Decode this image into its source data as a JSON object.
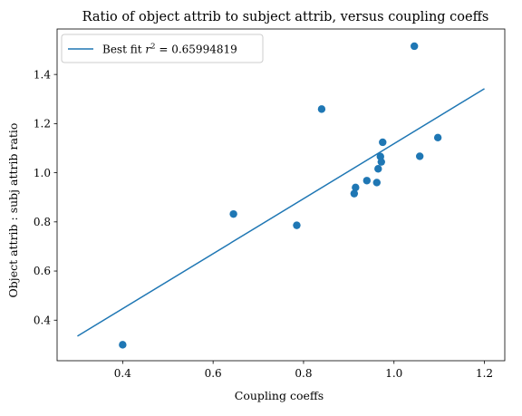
{
  "chart_data": {
    "type": "scatter",
    "title": "Ratio of object attrib to subject attrib, versus coupling coeffs",
    "xlabel": "Coupling coeffs",
    "ylabel": "Object attrib : subj attrib ratio",
    "xlim": [
      0.255,
      1.245
    ],
    "ylim": [
      0.235,
      1.585
    ],
    "xticks": [
      0.4,
      0.6,
      0.8,
      1.0,
      1.2
    ],
    "xtick_labels": [
      "0.4",
      "0.6",
      "0.8",
      "1.0",
      "1.2"
    ],
    "yticks": [
      0.4,
      0.6,
      0.8,
      1.0,
      1.2,
      1.4
    ],
    "ytick_labels": [
      "0.4",
      "0.6",
      "0.8",
      "1.0",
      "1.2",
      "1.4"
    ],
    "grid": false,
    "legend": {
      "position": "top-left",
      "entries": [
        {
          "prefix": "Best fit ",
          "r": "r",
          "sup": "2",
          "suffix": " = 0.65994819"
        }
      ]
    },
    "series": [
      {
        "kind": "scatter",
        "color": "#1f77b4",
        "points": [
          {
            "x": 0.4,
            "y": 0.3
          },
          {
            "x": 0.645,
            "y": 0.832
          },
          {
            "x": 0.785,
            "y": 0.786
          },
          {
            "x": 0.84,
            "y": 1.259
          },
          {
            "x": 0.912,
            "y": 0.915
          },
          {
            "x": 0.915,
            "y": 0.94
          },
          {
            "x": 0.94,
            "y": 0.968
          },
          {
            "x": 0.962,
            "y": 0.96
          },
          {
            "x": 0.965,
            "y": 1.016
          },
          {
            "x": 0.97,
            "y": 1.066
          },
          {
            "x": 0.972,
            "y": 1.044
          },
          {
            "x": 0.975,
            "y": 1.124
          },
          {
            "x": 1.045,
            "y": 1.515
          },
          {
            "x": 1.057,
            "y": 1.067
          },
          {
            "x": 1.097,
            "y": 1.143
          }
        ]
      },
      {
        "kind": "line",
        "color": "#1f77b4",
        "points": [
          {
            "x": 0.3,
            "y": 0.335
          },
          {
            "x": 1.2,
            "y": 1.342
          }
        ]
      }
    ]
  }
}
